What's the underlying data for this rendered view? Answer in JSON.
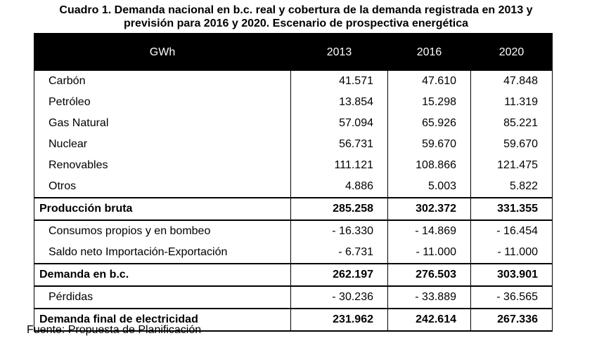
{
  "title": [
    "Cuadro 1. Demanda nacional en b.c. real y cobertura de la demanda registrada en 2013 y",
    "previsión para 2016 y 2020. Escenario de prospectiva energética"
  ],
  "header": [
    "GWh",
    "2013",
    "2016",
    "2020"
  ],
  "sections": [
    {
      "items": [
        {
          "label": "Carbón",
          "values": [
            "41.571",
            "47.610",
            "47.848"
          ]
        },
        {
          "label": "Petróleo",
          "values": [
            "13.854",
            "15.298",
            "11.319"
          ]
        },
        {
          "label": "Gas Natural",
          "values": [
            "57.094",
            "65.926",
            "85.221"
          ]
        },
        {
          "label": "Nuclear",
          "values": [
            "56.731",
            "59.670",
            "59.670"
          ]
        },
        {
          "label": "Renovables",
          "values": [
            "111.121",
            "108.866",
            "121.475"
          ]
        },
        {
          "label": "Otros",
          "values": [
            "4.886",
            "5.003",
            "5.822"
          ]
        }
      ],
      "total": {
        "label": "Producción bruta",
        "values": [
          "285.258",
          "302.372",
          "331.355"
        ]
      }
    },
    {
      "items": [
        {
          "label": "Consumos propios y en bombeo",
          "values": [
            "- 16.330",
            "- 14.869",
            "- 16.454"
          ]
        },
        {
          "label": "Saldo neto Importación-Exportación",
          "values": [
            "- 6.731",
            "- 11.000",
            "- 11.000"
          ]
        }
      ],
      "total": {
        "label": "Demanda en b.c.",
        "values": [
          "262.197",
          "276.503",
          "303.901"
        ]
      }
    },
    {
      "items": [
        {
          "label": "Pérdidas",
          "values": [
            "- 30.236",
            "- 33.889",
            "- 36.565"
          ]
        }
      ],
      "total": {
        "label": "Demanda final de electricidad",
        "values": [
          "231.962",
          "242.614",
          "267.336"
        ]
      }
    }
  ],
  "source": "Fuente: Propuesta de Planificación"
}
